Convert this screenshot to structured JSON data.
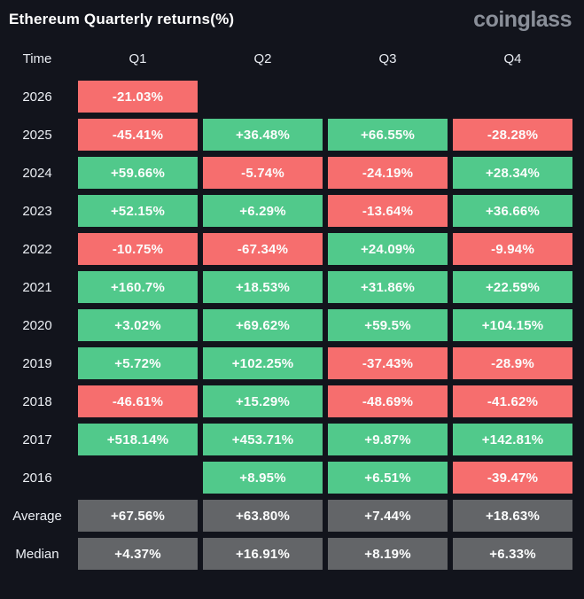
{
  "header": {
    "title": "Ethereum Quarterly returns(%)",
    "logo_text": "coinglass"
  },
  "colors": {
    "background": "#12141C",
    "positive": "#51C98B",
    "negative": "#F66E6E",
    "summary": "#636568",
    "cell_text": "#FCFDFD"
  },
  "table": {
    "headers": [
      "Time",
      "Q1",
      "Q2",
      "Q3",
      "Q4"
    ],
    "rows": [
      {
        "label": "2026",
        "summary": false,
        "cells": [
          {
            "text": "-21.03%",
            "type": "negative"
          },
          null,
          null,
          null
        ]
      },
      {
        "label": "2025",
        "summary": false,
        "cells": [
          {
            "text": "-45.41%",
            "type": "negative"
          },
          {
            "text": "+36.48%",
            "type": "positive"
          },
          {
            "text": "+66.55%",
            "type": "positive"
          },
          {
            "text": "-28.28%",
            "type": "negative"
          }
        ]
      },
      {
        "label": "2024",
        "summary": false,
        "cells": [
          {
            "text": "+59.66%",
            "type": "positive"
          },
          {
            "text": "-5.74%",
            "type": "negative"
          },
          {
            "text": "-24.19%",
            "type": "negative"
          },
          {
            "text": "+28.34%",
            "type": "positive"
          }
        ]
      },
      {
        "label": "2023",
        "summary": false,
        "cells": [
          {
            "text": "+52.15%",
            "type": "positive"
          },
          {
            "text": "+6.29%",
            "type": "positive"
          },
          {
            "text": "-13.64%",
            "type": "negative"
          },
          {
            "text": "+36.66%",
            "type": "positive"
          }
        ]
      },
      {
        "label": "2022",
        "summary": false,
        "cells": [
          {
            "text": "-10.75%",
            "type": "negative"
          },
          {
            "text": "-67.34%",
            "type": "negative"
          },
          {
            "text": "+24.09%",
            "type": "positive"
          },
          {
            "text": "-9.94%",
            "type": "negative"
          }
        ]
      },
      {
        "label": "2021",
        "summary": false,
        "cells": [
          {
            "text": "+160.7%",
            "type": "positive"
          },
          {
            "text": "+18.53%",
            "type": "positive"
          },
          {
            "text": "+31.86%",
            "type": "positive"
          },
          {
            "text": "+22.59%",
            "type": "positive"
          }
        ]
      },
      {
        "label": "2020",
        "summary": false,
        "cells": [
          {
            "text": "+3.02%",
            "type": "positive"
          },
          {
            "text": "+69.62%",
            "type": "positive"
          },
          {
            "text": "+59.5%",
            "type": "positive"
          },
          {
            "text": "+104.15%",
            "type": "positive"
          }
        ]
      },
      {
        "label": "2019",
        "summary": false,
        "cells": [
          {
            "text": "+5.72%",
            "type": "positive"
          },
          {
            "text": "+102.25%",
            "type": "positive"
          },
          {
            "text": "-37.43%",
            "type": "negative"
          },
          {
            "text": "-28.9%",
            "type": "negative"
          }
        ]
      },
      {
        "label": "2018",
        "summary": false,
        "cells": [
          {
            "text": "-46.61%",
            "type": "negative"
          },
          {
            "text": "+15.29%",
            "type": "positive"
          },
          {
            "text": "-48.69%",
            "type": "negative"
          },
          {
            "text": "-41.62%",
            "type": "negative"
          }
        ]
      },
      {
        "label": "2017",
        "summary": false,
        "cells": [
          {
            "text": "+518.14%",
            "type": "positive"
          },
          {
            "text": "+453.71%",
            "type": "positive"
          },
          {
            "text": "+9.87%",
            "type": "positive"
          },
          {
            "text": "+142.81%",
            "type": "positive"
          }
        ]
      },
      {
        "label": "2016",
        "summary": false,
        "cells": [
          null,
          {
            "text": "+8.95%",
            "type": "positive"
          },
          {
            "text": "+6.51%",
            "type": "positive"
          },
          {
            "text": "-39.47%",
            "type": "negative"
          }
        ]
      },
      {
        "label": "Average",
        "summary": true,
        "cells": [
          {
            "text": "+67.56%",
            "type": "summary"
          },
          {
            "text": "+63.80%",
            "type": "summary"
          },
          {
            "text": "+7.44%",
            "type": "summary"
          },
          {
            "text": "+18.63%",
            "type": "summary"
          }
        ]
      },
      {
        "label": "Median",
        "summary": true,
        "cells": [
          {
            "text": "+4.37%",
            "type": "summary"
          },
          {
            "text": "+16.91%",
            "type": "summary"
          },
          {
            "text": "+8.19%",
            "type": "summary"
          },
          {
            "text": "+6.33%",
            "type": "summary"
          }
        ]
      }
    ]
  },
  "chart_data": {
    "type": "heatmap",
    "title": "Ethereum Quarterly returns(%)",
    "unit": "%",
    "columns": [
      "Q1",
      "Q2",
      "Q3",
      "Q4"
    ],
    "rows": [
      "2026",
      "2025",
      "2024",
      "2023",
      "2022",
      "2021",
      "2020",
      "2019",
      "2018",
      "2017",
      "2016",
      "Average",
      "Median"
    ],
    "values": [
      [
        -21.03,
        null,
        null,
        null
      ],
      [
        -45.41,
        36.48,
        66.55,
        -28.28
      ],
      [
        59.66,
        -5.74,
        -24.19,
        28.34
      ],
      [
        52.15,
        6.29,
        -13.64,
        36.66
      ],
      [
        -10.75,
        -67.34,
        24.09,
        -9.94
      ],
      [
        160.7,
        18.53,
        31.86,
        22.59
      ],
      [
        3.02,
        69.62,
        59.5,
        104.15
      ],
      [
        5.72,
        102.25,
        -37.43,
        -28.9
      ],
      [
        -46.61,
        15.29,
        -48.69,
        -41.62
      ],
      [
        518.14,
        453.71,
        9.87,
        142.81
      ],
      [
        null,
        8.95,
        6.51,
        -39.47
      ],
      [
        67.56,
        63.8,
        7.44,
        18.63
      ],
      [
        4.37,
        16.91,
        8.19,
        6.33
      ]
    ],
    "legend_position": "none",
    "grid": false,
    "color_coding": {
      "positive": "#51C98B",
      "negative": "#F66E6E",
      "summary_rows": "#636568"
    }
  }
}
